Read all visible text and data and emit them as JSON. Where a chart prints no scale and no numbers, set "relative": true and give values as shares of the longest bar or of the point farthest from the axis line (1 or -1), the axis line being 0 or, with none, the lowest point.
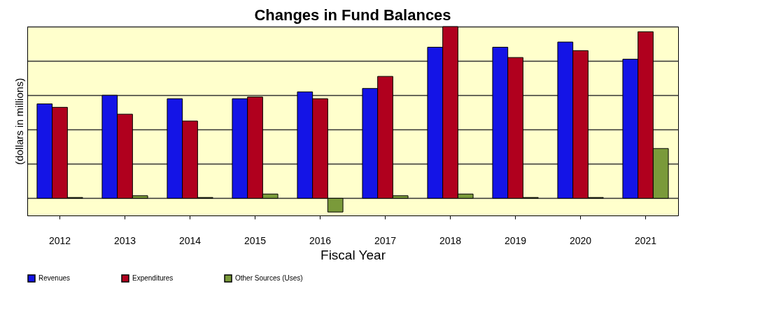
{
  "chart_data": {
    "type": "bar",
    "title": "Changes in Fund Balances",
    "xlabel": "Fiscal Year",
    "ylabel": "(dollars in millions)",
    "relative": true,
    "grid": "y",
    "legend": "bottom",
    "categories": [
      "2012",
      "2013",
      "2014",
      "2015",
      "2016",
      "2017",
      "2018",
      "2019",
      "2020",
      "2021"
    ],
    "series": [
      {
        "name": "Revenues",
        "color": "#1414e6",
        "values": [
          0.55,
          0.6,
          0.58,
          0.58,
          0.62,
          0.64,
          0.88,
          0.88,
          0.91,
          0.81
        ]
      },
      {
        "name": "Expenditures",
        "color": "#b0001e",
        "values": [
          0.53,
          0.49,
          0.45,
          0.59,
          0.58,
          0.71,
          1,
          0.82,
          0.86,
          0.97
        ]
      },
      {
        "name": "Other Sources (Uses)",
        "color": "#7a9a3a",
        "values": [
          0.005,
          0.015,
          0.005,
          0.025,
          -0.08,
          0.015,
          0.025,
          0.005,
          0.005,
          0.29
        ]
      }
    ]
  }
}
